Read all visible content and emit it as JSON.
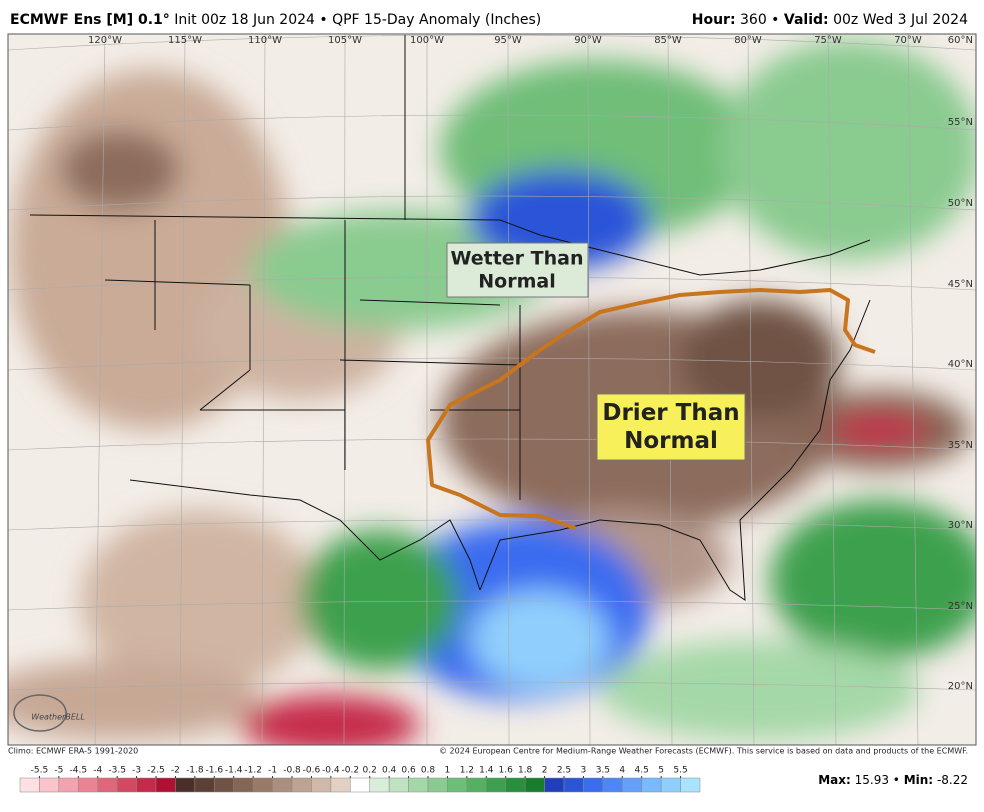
{
  "header": {
    "model": "ECMWF Ens [M] 0.1°",
    "description": "Init 00z 18 Jun 2024 • QPF 15-Day Anomaly (Inches)",
    "hour_label": "Hour:",
    "hour": "360 •",
    "valid_label": "Valid:",
    "valid": "00z Wed 3 Jul 2024"
  },
  "map": {
    "lon_labels": [
      "120°W",
      "115°W",
      "110°W",
      "105°W",
      "100°W",
      "95°W",
      "90°W",
      "85°W",
      "80°W",
      "75°W",
      "70°W"
    ],
    "lat_labels": [
      "60°N",
      "55°N",
      "50°N",
      "45°N",
      "40°N",
      "35°N",
      "30°N",
      "25°N",
      "20°N"
    ],
    "annotations": [
      "Wetter Than\nNormal",
      "Drier Than\nNormal"
    ],
    "logo": "WeatherBELL"
  },
  "footer": {
    "climo": "Climo: ECMWF ERA-5 1991-2020",
    "copyright": "© 2024 European Centre for Medium-Range Weather Forecasts (ECMWF). This service is based on data and products of the ECMWF.",
    "max_label": "Max:",
    "max": "15.93 •",
    "min_label": "Min:",
    "min": "-8.22"
  },
  "colorbar": {
    "labels": [
      -5.5,
      -5,
      -4.5,
      -4,
      -3.5,
      -3,
      -2.5,
      -2,
      -1.8,
      -1.6,
      -1.4,
      -1.2,
      -1,
      -0.8,
      -0.6,
      -0.4,
      -0.2,
      0.2,
      0.4,
      0.6,
      0.8,
      1,
      1.2,
      1.4,
      1.6,
      1.8,
      2,
      2.5,
      3,
      3.5,
      4,
      4.5,
      5,
      5.5
    ],
    "colors": [
      "#fde0e4",
      "#f9c4cb",
      "#f2a3ae",
      "#ea8494",
      "#e0667a",
      "#d44862",
      "#c62a4a",
      "#b30f33",
      "#4a3028",
      "#5d4035",
      "#715245",
      "#856656",
      "#997a69",
      "#ab8e7d",
      "#bea392",
      "#d0b9a9",
      "#e2d0c2",
      "#ffffff",
      "#d8eed8",
      "#bfe3c0",
      "#a5d8a8",
      "#8acb90",
      "#6fbe78",
      "#55b062",
      "#3ca04e",
      "#288f3c",
      "#177d2c",
      "#1f3fbf",
      "#2a55d8",
      "#3a6cf0",
      "#4f86f7",
      "#64a0fa",
      "#7ab9fc",
      "#90cffd",
      "#a8e4fe"
    ]
  }
}
